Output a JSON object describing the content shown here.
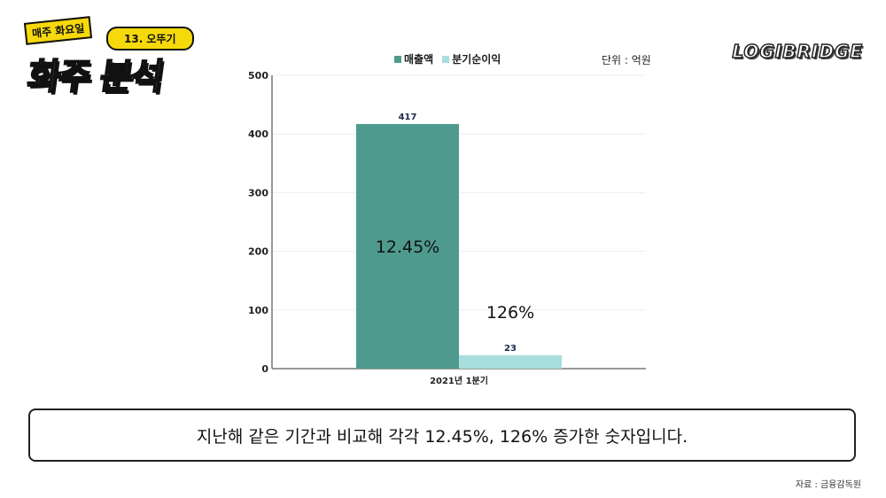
{
  "branding": {
    "series_tag": "매주 화요일",
    "episode": "13. 오뚜기",
    "series_title": "화주 분석",
    "logo": "LOGIBRIDGE"
  },
  "unit_label": "단위 : 억원",
  "caption": "지난해 같은 기간과 비교해 각각 12.45%, 126% 증가한 숫자입니다.",
  "source": "자료 : 금융감독원",
  "colors": {
    "revenue": "#4f9a8e",
    "net_income": "#a9dede",
    "axis": "#333333",
    "grid": "#eeeeee"
  },
  "chart_data": {
    "type": "bar",
    "categories": [
      "2021년 1분기"
    ],
    "series": [
      {
        "name": "매출액",
        "values": [
          417
        ],
        "growth_label": "12.45%"
      },
      {
        "name": "분기순이익",
        "values": [
          23
        ],
        "growth_label": "126%"
      }
    ],
    "ylim": [
      0,
      500
    ],
    "yticks": [
      0,
      100,
      200,
      300,
      400,
      500
    ],
    "legend": "top",
    "grid": true
  }
}
